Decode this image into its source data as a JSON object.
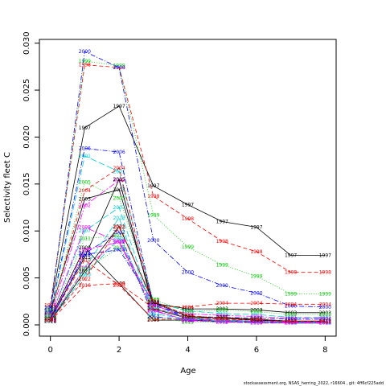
{
  "footer": "stockassessment.org, NSAS_herring_2022, r16604 , git: 4ff6cf225add",
  "chart_data": {
    "type": "line",
    "title": "",
    "xlabel": "Age",
    "ylabel": "Selectivity fleet C",
    "xlim": [
      -0.32,
      8.32
    ],
    "ylim": [
      -0.0012,
      0.0304
    ],
    "x_ticks": [
      0,
      2,
      4,
      6,
      8
    ],
    "y_ticks": [
      0.0,
      0.005,
      0.01,
      0.015,
      0.02,
      0.025,
      0.03
    ],
    "y_tick_labels": [
      "0.000",
      "0.005",
      "0.010",
      "0.015",
      "0.020",
      "0.025",
      "0.030"
    ],
    "x": [
      0,
      1,
      2,
      3,
      4,
      5,
      6,
      7,
      8
    ],
    "grid": false,
    "legend": "none (each point labelled with its year)",
    "series": [
      {
        "name": "1997",
        "color": "#000000",
        "dash": "0",
        "values": [
          0.00188,
          0.021,
          0.0233,
          0.0148,
          0.0128,
          0.011,
          0.0104,
          0.0074,
          0.0074
        ]
      },
      {
        "name": "1998",
        "color": "#ff0000",
        "dash": "5 3",
        "values": [
          0.0021,
          0.0277,
          0.0274,
          0.0137,
          0.0113,
          0.0089,
          0.0078,
          0.0056,
          0.0056
        ]
      },
      {
        "name": "1999",
        "color": "#00cd00",
        "dash": "1 2",
        "values": [
          0.0016,
          0.0281,
          0.0276,
          0.0117,
          0.0083,
          0.0064,
          0.0052,
          0.0033,
          0.0033
        ]
      },
      {
        "name": "2000",
        "color": "#0000ff",
        "dash": "6 2 1 2",
        "values": [
          0.00178,
          0.0291,
          0.0274,
          0.009,
          0.0056,
          0.0042,
          0.0034,
          0.002,
          0.0019
        ]
      },
      {
        "name": "2001",
        "color": "#00cdcd",
        "dash": "8 3",
        "values": [
          0.0012,
          0.018,
          0.0163,
          0.0024,
          0.0015,
          0.0012,
          0.0011,
          0.0008,
          0.0008
        ]
      },
      {
        "name": "2002",
        "color": "#ff00ff",
        "dash": "8 2 2 2",
        "values": [
          0.0009,
          0.0127,
          0.0154,
          0.002,
          0.0012,
          0.001,
          0.0009,
          0.0007,
          0.0007
        ]
      },
      {
        "name": "2003",
        "color": "#000000",
        "dash": "0",
        "values": [
          0.0014,
          0.0134,
          0.0144,
          0.0023,
          0.0017,
          0.0017,
          0.0016,
          0.0013,
          0.0013
        ]
      },
      {
        "name": "2004",
        "color": "#ff0000",
        "dash": "5 3",
        "values": [
          0.0011,
          0.0143,
          0.0167,
          0.002,
          0.0019,
          0.0023,
          0.0023,
          0.0022,
          0.0022
        ]
      },
      {
        "name": "2005",
        "color": "#00cd00",
        "dash": "1 2",
        "values": [
          0.001,
          0.0152,
          0.0135,
          0.0027,
          0.0014,
          0.0016,
          0.0014,
          0.0011,
          0.0011
        ]
      },
      {
        "name": "2006",
        "color": "#0000ff",
        "dash": "6 2 1 2",
        "values": [
          0.0013,
          0.0188,
          0.0184,
          0.0021,
          0.0009,
          0.0008,
          0.0007,
          0.0006,
          0.0006
        ]
      },
      {
        "name": "2007",
        "color": "#00cdcd",
        "dash": "8 3",
        "values": [
          0.0008,
          0.01,
          0.0125,
          0.0015,
          0.0005,
          0.0004,
          0.0004,
          0.0003,
          0.0003
        ]
      },
      {
        "name": "2008",
        "color": "#ff00ff",
        "dash": "8 2 2 2",
        "values": [
          0.0007,
          0.0104,
          0.0088,
          0.0016,
          0.0004,
          0.0004,
          0.0003,
          0.0003,
          0.0003
        ]
      },
      {
        "name": "2009",
        "color": "#000000",
        "dash": "0",
        "values": [
          0.0007,
          0.0082,
          0.0044,
          0.0005,
          0.0005,
          0.0004,
          0.0003,
          0.0002,
          0.0002
        ]
      },
      {
        "name": "2010",
        "color": "#ff0000",
        "dash": "5 3",
        "values": [
          0.0006,
          0.0069,
          0.0042,
          0.0006,
          0.0006,
          0.0004,
          0.0002,
          0.0002,
          0.0002
        ]
      },
      {
        "name": "2011",
        "color": "#00cd00",
        "dash": "1 2",
        "values": [
          0.0006,
          0.0092,
          0.0095,
          0.0008,
          0.0003,
          0.0003,
          0.0003,
          0.0002,
          0.0002
        ]
      },
      {
        "name": "2012",
        "color": "#0000ff",
        "dash": "6 2 1 2",
        "values": [
          0.0004,
          0.0076,
          0.0099,
          0.0009,
          0.0005,
          0.0003,
          0.0003,
          0.0002,
          0.0002
        ]
      },
      {
        "name": "2013",
        "color": "#00cdcd",
        "dash": "8 3",
        "values": [
          0.0005,
          0.0061,
          0.0114,
          0.0012,
          0.0006,
          0.0004,
          0.0003,
          0.0002,
          0.0002
        ]
      },
      {
        "name": "2014",
        "color": "#ff00ff",
        "dash": "8 2 2 2",
        "values": [
          0.0004,
          0.0061,
          0.009,
          0.0015,
          0.0005,
          0.0003,
          0.0002,
          0.0002,
          0.0002
        ]
      },
      {
        "name": "2015",
        "color": "#000000",
        "dash": "0",
        "values": [
          0.0007,
          0.0072,
          0.0155,
          0.0017,
          0.0007,
          0.0008,
          0.0006,
          0.0004,
          0.0004
        ]
      },
      {
        "name": "2016",
        "color": "#ff0000",
        "dash": "5 3",
        "values": [
          0.0004,
          0.0042,
          0.0044,
          0.0018,
          0.0008,
          0.0006,
          0.0005,
          0.0003,
          0.0003
        ]
      },
      {
        "name": "2017",
        "color": "#00cd00",
        "dash": "1 2",
        "values": [
          0.0006,
          0.0059,
          0.0082,
          0.0026,
          0.0008,
          0.0006,
          0.0006,
          0.0004,
          0.0004
        ]
      },
      {
        "name": "2018",
        "color": "#0000ff",
        "dash": "6 2 1 2",
        "values": [
          0.0005,
          0.0075,
          0.008,
          0.0024,
          0.0006,
          0.0005,
          0.0004,
          0.0003,
          0.0003
        ]
      },
      {
        "name": "2019",
        "color": "#00cdcd",
        "dash": "8 3",
        "values": [
          0.0004,
          0.0053,
          0.0092,
          0.0019,
          0.0007,
          0.0005,
          0.0004,
          0.0003,
          0.0003
        ]
      },
      {
        "name": "2020",
        "color": "#ff00ff",
        "dash": "8 2 2 2",
        "values": [
          0.0005,
          0.008,
          0.0088,
          0.0022,
          0.0006,
          0.0005,
          0.0004,
          0.0003,
          0.0003
        ]
      },
      {
        "name": "2021",
        "color": "#000000",
        "dash": "0",
        "values": [
          0.0004,
          0.0057,
          0.0105,
          0.0024,
          0.0009,
          0.0007,
          0.0005,
          0.0004,
          0.0004
        ]
      },
      {
        "name": "2022",
        "color": "#ff0000",
        "dash": "5 3",
        "values": [
          0.0005,
          0.0049,
          0.0104,
          0.0025,
          0.001,
          0.0007,
          0.0006,
          0.0004,
          0.0004
        ]
      }
    ]
  }
}
